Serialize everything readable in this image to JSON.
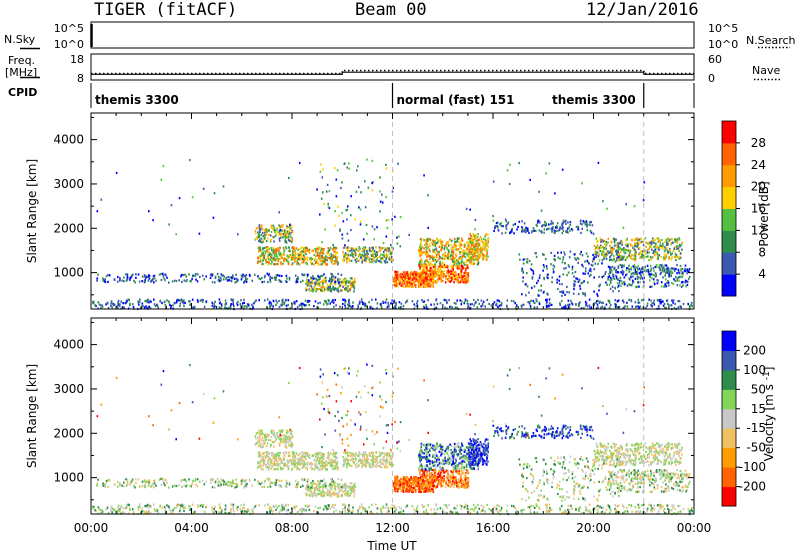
{
  "header": {
    "radar": "TIGER (fitACF)",
    "beam": "Beam 00",
    "date": "12/Jan/2016"
  },
  "side_labels": {
    "nsky": "N.Sky",
    "freq_line1": "Freq.",
    "freq_line2": "[MHz]",
    "cpid": "CPID",
    "nsearch": "N.Search",
    "nave": "Nave"
  },
  "colors": {
    "power": [
      "#0000ff",
      "#3a5ab0",
      "#2f8c4c",
      "#55c040",
      "#ffd000",
      "#ff9d00",
      "#ff6400",
      "#ff0000"
    ],
    "velocity": [
      "#ff0000",
      "#ff6400",
      "#ff9d00",
      "#f0c060",
      "#c8c8c8",
      "#84d65a",
      "#2f8c4c",
      "#3a5ab0",
      "#0000ff"
    ]
  },
  "chart_data": [
    {
      "type": "line",
      "panel": "nsky-nsearch",
      "y_ticks_left": [
        "10^5",
        "10^0"
      ],
      "y_ticks_right": [
        "10^5",
        "10^0"
      ]
    },
    {
      "type": "line",
      "panel": "freq-nave",
      "ylim_left": [
        8,
        18
      ],
      "ylim_right": [
        0,
        60
      ],
      "y_ticks_left": [
        "18",
        "8"
      ],
      "y_ticks_right": [
        "60",
        "0"
      ],
      "freq_series": {
        "x": [
          0,
          10,
          10,
          22,
          22,
          24
        ],
        "y": [
          10.2,
          10.2,
          11.0,
          11.0,
          10.2,
          10.2
        ]
      },
      "nave_series": {
        "x": [
          0,
          10,
          10,
          22,
          22,
          24
        ],
        "y": [
          15,
          15,
          22,
          22,
          15,
          15
        ]
      }
    },
    {
      "type": "table",
      "panel": "cpid",
      "segments": [
        {
          "start": 0,
          "end": 12,
          "label": "themis 3300"
        },
        {
          "start": 12,
          "end": 22,
          "label": "normal (fast) 151"
        },
        {
          "start": 22,
          "end": 24,
          "label": "themis 3300"
        }
      ]
    },
    {
      "type": "heatmap",
      "panel": "power",
      "ylabel": "Slant Range [km]",
      "y_ticks": [
        "1000",
        "2000",
        "3000",
        "4000"
      ],
      "ylim": [
        180,
        4600
      ],
      "xlim": [
        0,
        24
      ],
      "colorbar_label": "Power [dB]",
      "colorbar_ticks": [
        "4",
        "8",
        "12",
        "16",
        "20",
        "24",
        "28"
      ],
      "colorbar_range": [
        0,
        32
      ]
    },
    {
      "type": "heatmap",
      "panel": "velocity",
      "ylabel": "Slant Range [km]",
      "y_ticks": [
        "1000",
        "2000",
        "3000",
        "4000"
      ],
      "ylim": [
        180,
        4600
      ],
      "xlim": [
        0,
        24
      ],
      "x_ticks": [
        "00:00",
        "04:00",
        "08:00",
        "12:00",
        "16:00",
        "20:00",
        "00:00"
      ],
      "xlabel": "Time UT",
      "colorbar_label": "Velocity [m s^-1]",
      "colorbar_ticks": [
        "-200",
        "-100",
        "-50",
        "-15",
        "15",
        "50",
        "100",
        "200"
      ]
    }
  ]
}
